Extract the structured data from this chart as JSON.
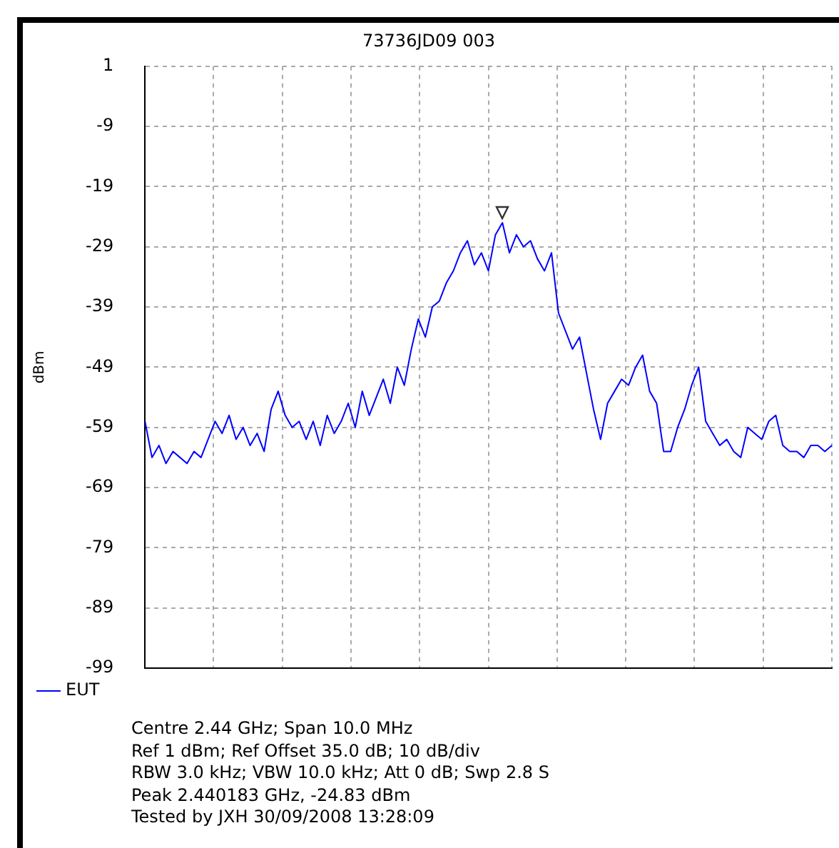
{
  "chart_data": {
    "type": "line",
    "title": "73736JD09 003",
    "ylabel": "dBm",
    "categories": [
      null,
      null,
      null,
      null,
      null,
      null,
      null,
      null,
      null,
      null,
      null,
      null,
      null,
      null,
      null,
      null,
      null,
      null,
      null,
      null,
      null,
      null,
      null,
      null,
      null,
      null,
      null,
      null,
      null,
      null,
      null,
      null,
      null,
      null,
      null,
      null,
      null,
      null,
      null,
      null,
      null,
      null,
      null,
      null,
      null,
      null,
      null,
      null,
      null,
      null,
      null,
      null,
      null,
      null,
      null,
      null,
      null,
      null,
      null,
      null,
      null,
      null,
      null,
      null,
      null,
      null,
      null,
      null,
      null,
      null,
      null,
      null,
      null,
      null,
      null,
      null,
      null,
      null,
      null,
      null,
      null,
      null,
      null,
      null,
      null,
      null,
      null,
      null,
      null,
      null,
      null,
      null,
      null,
      null,
      null,
      null,
      null,
      null,
      null
    ],
    "series": [
      {
        "name": "EUT",
        "color": "#0000ff",
        "values": [
          -58,
          -64,
          -62,
          -65,
          -63,
          -64,
          -65,
          -63,
          -64,
          -61,
          -58,
          -60,
          -57,
          -61,
          -59,
          -62,
          -60,
          -63,
          -56,
          -53,
          -57,
          -59,
          -58,
          -61,
          -58,
          -62,
          -57,
          -60,
          -58,
          -55,
          -59,
          -53,
          -57,
          -54,
          -51,
          -55,
          -49,
          -52,
          -46,
          -41,
          -44,
          -39,
          -38,
          -35,
          -33,
          -30,
          -28,
          -32,
          -30,
          -33,
          -27,
          -25,
          -30,
          -27,
          -29,
          -28,
          -31,
          -33,
          -30,
          -40,
          -43,
          -46,
          -44,
          -50,
          -56,
          -61,
          -55,
          -53,
          -51,
          -52,
          -49,
          -47,
          -53,
          -55,
          -63,
          -63,
          -59,
          -56,
          -52,
          -49,
          -58,
          -60,
          -62,
          -61,
          -63,
          -64,
          -59,
          -60,
          -61,
          -58,
          -57,
          -62,
          -63,
          -63,
          -64,
          -62,
          -62,
          -63,
          -62
        ]
      }
    ],
    "ylim": [
      -99,
      1
    ],
    "yticks": [
      1,
      -9,
      -19,
      -29,
      -39,
      -49,
      -59,
      -69,
      -79,
      -89,
      -99
    ],
    "grid": true,
    "legend": "bottom",
    "marker": "none",
    "line_style": "solid",
    "tick_labels": "y",
    "annotations": [
      "Centre 2.44 GHz; Span 10.0 MHz",
      "Ref 1 dBm; Ref Offset 35.0 dB; 10 dB/div",
      "RBW 3.0 kHz; VBW 10.0 kHz; Att 0 dB; Swp 2.8 S",
      "Peak 2.440183 GHz, -24.83  dBm",
      "Tested by JXH 30/09/2008 13:28:09"
    ]
  }
}
